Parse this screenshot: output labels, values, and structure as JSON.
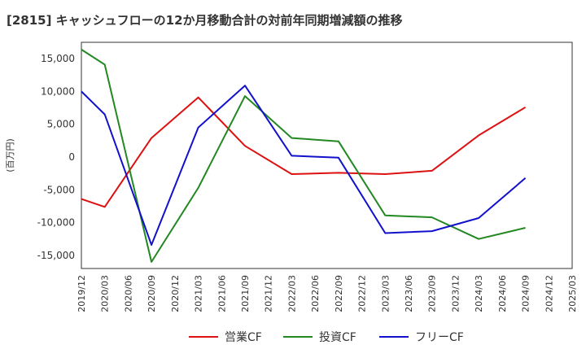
{
  "chart_data": {
    "type": "line",
    "title": "[2815]  キャッシュフローの12か月移動合計の対前年同期増減額の推移",
    "ylabel": "(百万円)",
    "xlabel": "",
    "ylim": [
      -17000,
      17500
    ],
    "yticks": [
      15000,
      10000,
      5000,
      0,
      -5000,
      -10000,
      -15000
    ],
    "ytick_labels": [
      "15,000",
      "10,000",
      "5,000",
      "0",
      "-5,000",
      "-10,000",
      "-15,000"
    ],
    "x": [
      "2019/12",
      "2020/03",
      "2020/06",
      "2020/09",
      "2020/12",
      "2021/03",
      "2021/06",
      "2021/09",
      "2021/12",
      "2022/03",
      "2022/06",
      "2022/09",
      "2022/12",
      "2023/03",
      "2023/06",
      "2023/09",
      "2023/12",
      "2024/03",
      "2024/06",
      "2024/09",
      "2024/12",
      "2025/03"
    ],
    "grid": true,
    "legend_position": "bottom",
    "series": [
      {
        "name": "営業CF",
        "color": "#dd1111",
        "points": [
          {
            "x": "2019/12",
            "y": -6400
          },
          {
            "x": "2020/03",
            "y": -7600
          },
          {
            "x": "2020/09",
            "y": 2900
          },
          {
            "x": "2021/03",
            "y": 9100
          },
          {
            "x": "2021/09",
            "y": 1700
          },
          {
            "x": "2022/03",
            "y": -2600
          },
          {
            "x": "2022/09",
            "y": -2400
          },
          {
            "x": "2023/03",
            "y": -2600
          },
          {
            "x": "2023/09",
            "y": -2100
          },
          {
            "x": "2024/03",
            "y": 3300
          },
          {
            "x": "2024/09",
            "y": 7600
          }
        ]
      },
      {
        "name": "投資CF",
        "color": "#228822",
        "points": [
          {
            "x": "2019/12",
            "y": 16400
          },
          {
            "x": "2020/03",
            "y": 14100
          },
          {
            "x": "2020/09",
            "y": -16000
          },
          {
            "x": "2021/03",
            "y": -4700
          },
          {
            "x": "2021/09",
            "y": 9300
          },
          {
            "x": "2022/03",
            "y": 2900
          },
          {
            "x": "2022/09",
            "y": 2400
          },
          {
            "x": "2023/03",
            "y": -8900
          },
          {
            "x": "2023/09",
            "y": -9200
          },
          {
            "x": "2024/03",
            "y": -12500
          },
          {
            "x": "2024/09",
            "y": -10800
          }
        ]
      },
      {
        "name": "フリーCF",
        "color": "#1111cc",
        "points": [
          {
            "x": "2019/12",
            "y": 10000
          },
          {
            "x": "2020/03",
            "y": 6500
          },
          {
            "x": "2020/09",
            "y": -13400
          },
          {
            "x": "2021/03",
            "y": 4500
          },
          {
            "x": "2021/09",
            "y": 10900
          },
          {
            "x": "2022/03",
            "y": 200
          },
          {
            "x": "2022/09",
            "y": -100
          },
          {
            "x": "2023/03",
            "y": -11600
          },
          {
            "x": "2023/09",
            "y": -11300
          },
          {
            "x": "2024/03",
            "y": -9300
          },
          {
            "x": "2024/09",
            "y": -3200
          }
        ]
      }
    ]
  }
}
